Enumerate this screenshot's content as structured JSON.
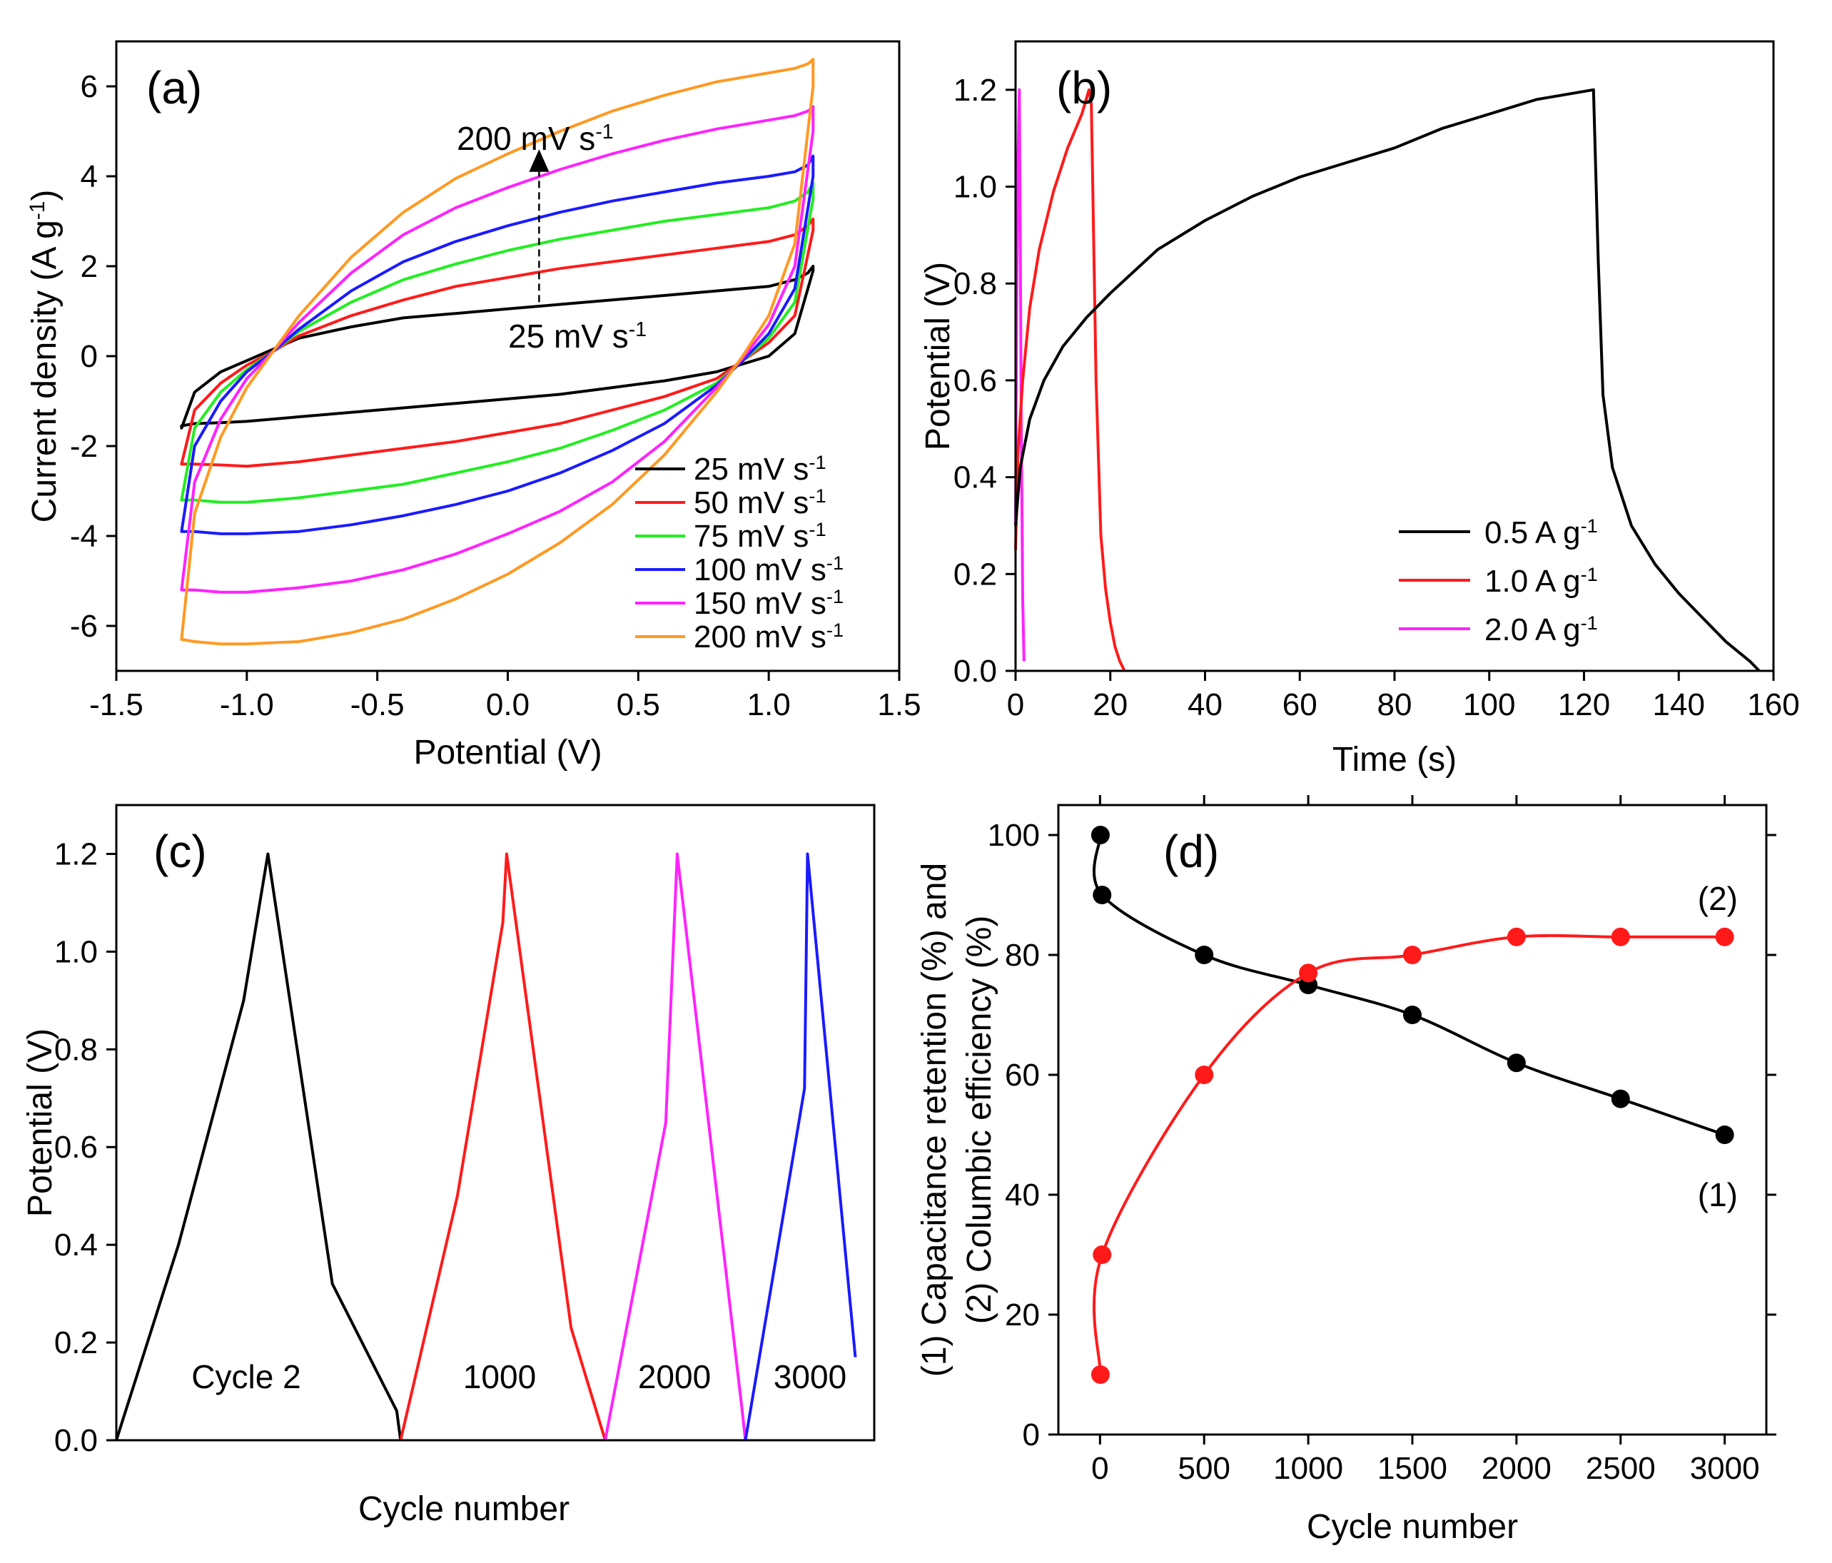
{
  "chart_data": [
    {
      "panel": "(a)",
      "type": "line",
      "xlabel": "Potential (V)",
      "ylabel": "Current density (A g⁻¹)",
      "xlim": [
        -1.5,
        1.5
      ],
      "ylim": [
        -7,
        7
      ],
      "xticks": [
        -1.5,
        -1.0,
        -0.5,
        0.0,
        0.5,
        1.0,
        1.5
      ],
      "xtick_labels": [
        "-1.5",
        "-1.0",
        "-0.5",
        "0.0",
        "0.5",
        "1.0",
        "1.5"
      ],
      "yticks": [
        -6,
        -4,
        -2,
        0,
        2,
        4,
        6
      ],
      "ytick_labels": [
        "-6",
        "-4",
        "-2",
        "0",
        "2",
        "4",
        "6"
      ],
      "annotations": {
        "top": "200 mV s⁻¹",
        "bottom": "25 mV s⁻¹"
      },
      "series": [
        {
          "name": "25 mV s⁻¹",
          "color": "#000000",
          "x": [
            -1.25,
            -1.2,
            -1.1,
            -1.0,
            -0.9,
            -0.8,
            -0.6,
            -0.4,
            -0.2,
            0.0,
            0.2,
            0.4,
            0.6,
            0.8,
            1.0,
            1.1,
            1.15,
            1.17,
            1.17,
            1.1,
            1.0,
            0.8,
            0.6,
            0.4,
            0.2,
            0.0,
            -0.2,
            -0.4,
            -0.6,
            -0.8,
            -1.0,
            -1.1,
            -1.2,
            -1.25,
            -1.25
          ],
          "y": [
            -1.6,
            -0.8,
            -0.35,
            -0.1,
            0.15,
            0.4,
            0.65,
            0.85,
            0.95,
            1.05,
            1.15,
            1.25,
            1.35,
            1.45,
            1.55,
            1.7,
            1.85,
            2.0,
            1.9,
            0.5,
            0.0,
            -0.35,
            -0.55,
            -0.7,
            -0.85,
            -0.95,
            -1.05,
            -1.15,
            -1.25,
            -1.35,
            -1.45,
            -1.48,
            -1.5,
            -1.55,
            -1.6
          ]
        },
        {
          "name": "50 mV s⁻¹",
          "color": "#ff1a1a",
          "x": [
            -1.25,
            -1.2,
            -1.1,
            -1.0,
            -0.9,
            -0.8,
            -0.6,
            -0.4,
            -0.2,
            0.0,
            0.2,
            0.4,
            0.6,
            0.8,
            1.0,
            1.1,
            1.15,
            1.17,
            1.17,
            1.1,
            1.0,
            0.9,
            0.8,
            0.6,
            0.4,
            0.2,
            0.0,
            -0.2,
            -0.4,
            -0.6,
            -0.8,
            -1.0,
            -1.1,
            -1.2,
            -1.25
          ],
          "y": [
            -2.4,
            -1.2,
            -0.6,
            -0.2,
            0.1,
            0.45,
            0.9,
            1.25,
            1.55,
            1.75,
            1.95,
            2.1,
            2.25,
            2.4,
            2.55,
            2.7,
            2.9,
            3.05,
            2.8,
            0.9,
            0.3,
            -0.1,
            -0.5,
            -0.9,
            -1.2,
            -1.5,
            -1.7,
            -1.9,
            -2.05,
            -2.2,
            -2.35,
            -2.45,
            -2.42,
            -2.4,
            -2.4
          ]
        },
        {
          "name": "75 mV s⁻¹",
          "color": "#22ee22",
          "x": [
            -1.25,
            -1.2,
            -1.1,
            -1.0,
            -0.9,
            -0.8,
            -0.6,
            -0.4,
            -0.2,
            0.0,
            0.2,
            0.4,
            0.6,
            0.8,
            1.0,
            1.1,
            1.15,
            1.17,
            1.17,
            1.1,
            1.0,
            0.9,
            0.8,
            0.6,
            0.4,
            0.2,
            0.0,
            -0.2,
            -0.4,
            -0.6,
            -0.8,
            -1.0,
            -1.1,
            -1.2,
            -1.25
          ],
          "y": [
            -3.2,
            -1.6,
            -0.8,
            -0.3,
            0.1,
            0.55,
            1.2,
            1.7,
            2.05,
            2.35,
            2.6,
            2.8,
            3.0,
            3.15,
            3.3,
            3.45,
            3.65,
            3.85,
            3.5,
            1.2,
            0.4,
            -0.1,
            -0.6,
            -1.2,
            -1.65,
            -2.05,
            -2.35,
            -2.6,
            -2.85,
            -3.0,
            -3.15,
            -3.25,
            -3.25,
            -3.2,
            -3.2
          ]
        },
        {
          "name": "100 mV s⁻¹",
          "color": "#1a1aff",
          "x": [
            -1.25,
            -1.2,
            -1.1,
            -1.0,
            -0.9,
            -0.8,
            -0.6,
            -0.4,
            -0.2,
            0.0,
            0.2,
            0.4,
            0.6,
            0.8,
            1.0,
            1.1,
            1.15,
            1.17,
            1.17,
            1.1,
            1.0,
            0.9,
            0.8,
            0.6,
            0.4,
            0.2,
            0.0,
            -0.2,
            -0.4,
            -0.6,
            -0.8,
            -1.0,
            -1.1,
            -1.2,
            -1.25
          ],
          "y": [
            -3.9,
            -2.0,
            -1.0,
            -0.35,
            0.1,
            0.6,
            1.45,
            2.1,
            2.55,
            2.9,
            3.2,
            3.45,
            3.65,
            3.85,
            4.0,
            4.1,
            4.25,
            4.45,
            4.0,
            1.5,
            0.5,
            -0.1,
            -0.65,
            -1.5,
            -2.1,
            -2.6,
            -3.0,
            -3.3,
            -3.55,
            -3.75,
            -3.9,
            -3.95,
            -3.95,
            -3.9,
            -3.9
          ]
        },
        {
          "name": "150 mV s⁻¹",
          "color": "#ff22ff",
          "x": [
            -1.25,
            -1.2,
            -1.1,
            -1.0,
            -0.9,
            -0.8,
            -0.6,
            -0.4,
            -0.2,
            0.0,
            0.2,
            0.4,
            0.6,
            0.8,
            1.0,
            1.1,
            1.15,
            1.17,
            1.17,
            1.1,
            1.0,
            0.9,
            0.8,
            0.6,
            0.4,
            0.2,
            0.0,
            -0.2,
            -0.4,
            -0.6,
            -0.8,
            -1.0,
            -1.1,
            -1.2,
            -1.25
          ],
          "y": [
            -5.2,
            -2.8,
            -1.4,
            -0.5,
            0.1,
            0.75,
            1.85,
            2.7,
            3.3,
            3.75,
            4.15,
            4.5,
            4.8,
            5.05,
            5.25,
            5.35,
            5.45,
            5.55,
            5.0,
            2.0,
            0.7,
            -0.05,
            -0.7,
            -1.9,
            -2.8,
            -3.45,
            -3.95,
            -4.4,
            -4.75,
            -5.0,
            -5.15,
            -5.25,
            -5.25,
            -5.2,
            -5.2
          ]
        },
        {
          "name": "200 mV s⁻¹",
          "color": "#ff9922",
          "x": [
            -1.25,
            -1.2,
            -1.1,
            -1.0,
            -0.9,
            -0.8,
            -0.6,
            -0.4,
            -0.2,
            0.0,
            0.2,
            0.4,
            0.6,
            0.8,
            1.0,
            1.1,
            1.15,
            1.17,
            1.17,
            1.1,
            1.0,
            0.9,
            0.8,
            0.6,
            0.4,
            0.2,
            0.0,
            -0.2,
            -0.4,
            -0.6,
            -0.8,
            -1.0,
            -1.1,
            -1.2,
            -1.25
          ],
          "y": [
            -6.3,
            -3.5,
            -1.8,
            -0.7,
            0.1,
            0.9,
            2.2,
            3.2,
            3.95,
            4.5,
            5.0,
            5.45,
            5.8,
            6.1,
            6.3,
            6.4,
            6.5,
            6.6,
            6.0,
            2.5,
            0.9,
            0.0,
            -0.8,
            -2.2,
            -3.3,
            -4.15,
            -4.85,
            -5.4,
            -5.85,
            -6.15,
            -6.35,
            -6.4,
            -6.4,
            -6.35,
            -6.3
          ]
        }
      ]
    },
    {
      "panel": "(b)",
      "type": "line",
      "xlabel": "Time (s)",
      "ylabel": "Potential (V)",
      "xlim": [
        0,
        160
      ],
      "ylim": [
        0,
        1.3
      ],
      "xticks": [
        0,
        20,
        40,
        60,
        80,
        100,
        120,
        140,
        160
      ],
      "xtick_labels": [
        "0",
        "20",
        "40",
        "60",
        "80",
        "100",
        "120",
        "140",
        "160"
      ],
      "yticks": [
        0,
        0.2,
        0.4,
        0.6,
        0.8,
        1.0,
        1.2
      ],
      "ytick_labels": [
        "0.0",
        "0.2",
        "0.4",
        "0.6",
        "0.8",
        "1.0",
        "1.2"
      ],
      "series": [
        {
          "name": "0.5 A g⁻¹",
          "color": "#000000",
          "x": [
            0,
            1,
            3,
            6,
            10,
            15,
            20,
            30,
            40,
            50,
            60,
            70,
            80,
            90,
            100,
            110,
            122,
            123,
            124,
            126,
            130,
            135,
            140,
            145,
            150,
            155,
            157
          ],
          "y": [
            0.3,
            0.42,
            0.52,
            0.6,
            0.67,
            0.73,
            0.78,
            0.87,
            0.93,
            0.98,
            1.02,
            1.05,
            1.08,
            1.12,
            1.15,
            1.18,
            1.2,
            0.85,
            0.57,
            0.42,
            0.3,
            0.22,
            0.16,
            0.11,
            0.06,
            0.02,
            0.0
          ]
        },
        {
          "name": "1.0 A g⁻¹",
          "color": "#ff1a1a",
          "x": [
            0,
            0.5,
            1.5,
            3,
            5,
            8,
            11,
            14,
            15.5,
            16,
            17,
            18,
            19,
            20,
            21,
            22,
            23
          ],
          "y": [
            0.25,
            0.45,
            0.6,
            0.75,
            0.87,
            0.99,
            1.08,
            1.15,
            1.2,
            1.17,
            0.6,
            0.28,
            0.17,
            0.1,
            0.05,
            0.02,
            0.0
          ]
        },
        {
          "name": "2.0 A g⁻¹",
          "color": "#ff22ff",
          "x": [
            0,
            0.2,
            0.5,
            0.8,
            1.0,
            1.2,
            1.5,
            1.8
          ],
          "y": [
            0.3,
            0.7,
            1.05,
            1.2,
            0.9,
            0.5,
            0.15,
            0.02
          ]
        }
      ]
    },
    {
      "panel": "(c)",
      "type": "line",
      "xlabel": "Cycle number",
      "ylabel": "Potential (V)",
      "xlim": [
        0,
        1
      ],
      "ylim": [
        0,
        1.3
      ],
      "yticks": [
        0,
        0.2,
        0.4,
        0.6,
        0.8,
        1.0,
        1.2
      ],
      "ytick_labels": [
        "0.0",
        "0.2",
        "0.4",
        "0.6",
        "0.8",
        "1.0",
        "1.2"
      ],
      "annotations": [
        "Cycle 2",
        "1000",
        "2000",
        "3000"
      ],
      "series": [
        {
          "name": "Cycle 2",
          "color": "#000000",
          "x": [
            0.0,
            0.082,
            0.168,
            0.2,
            0.285,
            0.37,
            0.375
          ],
          "y": [
            0.0,
            0.4,
            0.9,
            1.2,
            0.32,
            0.06,
            0.0
          ]
        },
        {
          "name": "1000",
          "color": "#ff1a1a",
          "x": [
            0.375,
            0.45,
            0.51,
            0.515,
            0.6,
            0.645
          ],
          "y": [
            0.0,
            0.5,
            1.06,
            1.2,
            0.23,
            0.0
          ]
        },
        {
          "name": "2000",
          "color": "#ff22ff",
          "x": [
            0.645,
            0.725,
            0.74,
            0.825,
            0.83
          ],
          "y": [
            0.0,
            0.65,
            1.2,
            0.07,
            0.0
          ]
        },
        {
          "name": "3000",
          "color": "#1a1aff",
          "x": [
            0.83,
            0.908,
            0.912,
            0.975
          ],
          "y": [
            0.0,
            0.72,
            1.2,
            0.17
          ]
        }
      ]
    },
    {
      "panel": "(d)",
      "type": "scatter",
      "xlabel": "Cycle number",
      "ylabel_part1": "(1) Capacitance retention (%) and",
      "ylabel_part2": "(2) Columbic efficiency (%)",
      "xlim": [
        -200,
        3200
      ],
      "ylim": [
        0,
        105
      ],
      "xticks": [
        0,
        500,
        1000,
        1500,
        2000,
        2500,
        3000
      ],
      "xtick_labels": [
        "0",
        "500",
        "1000",
        "1500",
        "2000",
        "2500",
        "3000"
      ],
      "yticks": [
        0,
        20,
        40,
        60,
        80,
        100
      ],
      "ytick_labels": [
        "0",
        "20",
        "40",
        "60",
        "80",
        "100"
      ],
      "series": [
        {
          "name": "(1)",
          "label": "(1)",
          "color": "#000000",
          "x": [
            2,
            10,
            500,
            1000,
            1500,
            2000,
            2500,
            3000
          ],
          "y": [
            100,
            90,
            80,
            75,
            70,
            62,
            56,
            50
          ]
        },
        {
          "name": "(2)",
          "label": "(2)",
          "color": "#ff1a1a",
          "x": [
            2,
            10,
            500,
            1000,
            1500,
            2000,
            2500,
            3000
          ],
          "y": [
            10,
            30,
            60,
            77,
            80,
            83,
            83,
            83
          ]
        }
      ]
    }
  ]
}
